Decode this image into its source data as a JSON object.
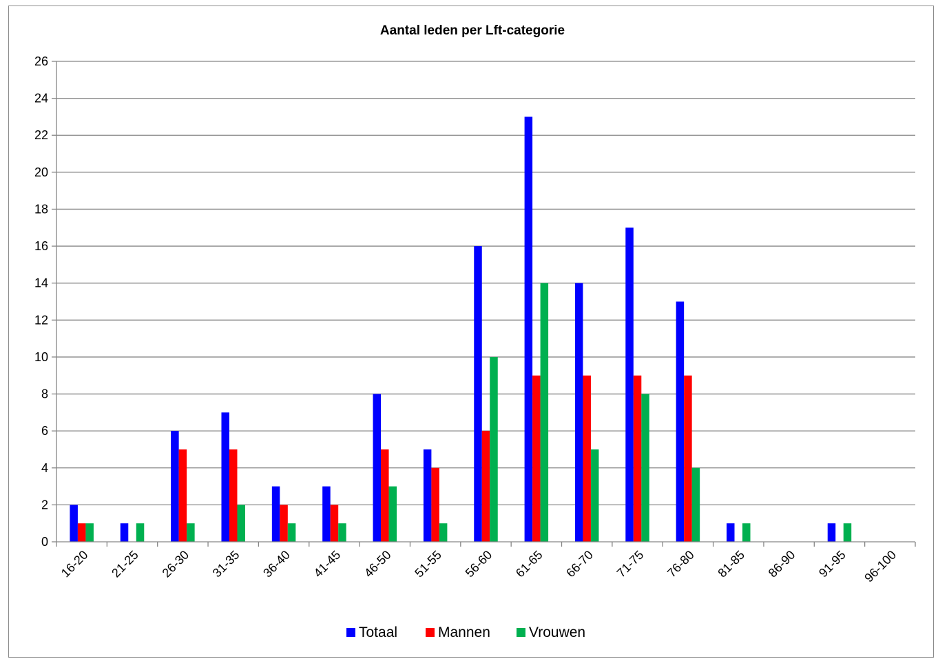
{
  "chart_data": {
    "type": "bar",
    "title": "Aantal leden per Lft-categorie",
    "xlabel": "",
    "ylabel": "",
    "ylim": [
      0,
      26
    ],
    "yticks": [
      0,
      2,
      4,
      6,
      8,
      10,
      12,
      14,
      16,
      18,
      20,
      22,
      24,
      26
    ],
    "grid": true,
    "legend_position": "bottom",
    "categories": [
      "16-20",
      "21-25",
      "26-30",
      "31-35",
      "36-40",
      "41-45",
      "46-50",
      "51-55",
      "56-60",
      "61-65",
      "66-70",
      "71-75",
      "76-80",
      "81-85",
      "86-90",
      "91-95",
      "96-100"
    ],
    "series": [
      {
        "name": "Totaal",
        "color": "#0000ff",
        "values": [
          2,
          1,
          6,
          7,
          3,
          3,
          8,
          5,
          16,
          23,
          14,
          17,
          13,
          1,
          0,
          1,
          0
        ]
      },
      {
        "name": "Mannen",
        "color": "#ff0000",
        "values": [
          1,
          0,
          5,
          5,
          2,
          2,
          5,
          4,
          6,
          9,
          9,
          9,
          9,
          0,
          0,
          0,
          0
        ]
      },
      {
        "name": "Vrouwen",
        "color": "#00b050",
        "values": [
          1,
          1,
          1,
          2,
          1,
          1,
          3,
          1,
          10,
          14,
          5,
          8,
          4,
          1,
          0,
          1,
          0
        ]
      }
    ]
  }
}
